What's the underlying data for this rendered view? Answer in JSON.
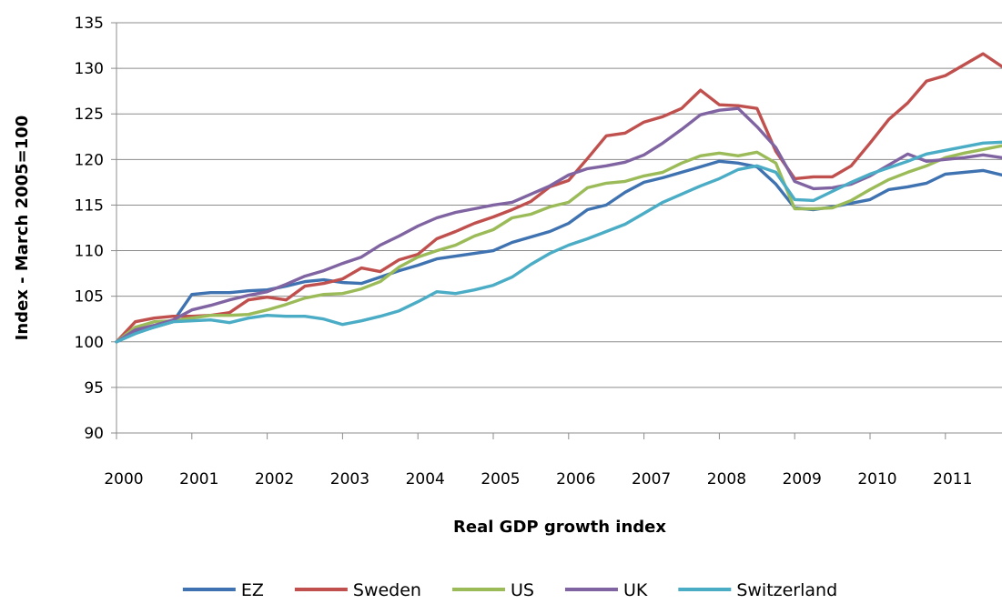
{
  "chart_data": {
    "type": "line",
    "title": "",
    "xlabel": "Real GDP growth index",
    "ylabel": "Index - March 2005=100",
    "ylim": [
      90,
      135
    ],
    "xlim": [
      2000,
      2011.75
    ],
    "y_ticks": [
      90,
      95,
      100,
      105,
      110,
      115,
      120,
      125,
      130,
      135
    ],
    "x_ticks": [
      2000,
      2001,
      2002,
      2003,
      2004,
      2005,
      2006,
      2007,
      2008,
      2009,
      2010,
      2011
    ],
    "grid": "horizontal",
    "legend_position": "bottom",
    "x": [
      2000.0,
      2000.25,
      2000.5,
      2000.75,
      2001.0,
      2001.25,
      2001.5,
      2001.75,
      2002.0,
      2002.25,
      2002.5,
      2002.75,
      2003.0,
      2003.25,
      2003.5,
      2003.75,
      2004.0,
      2004.25,
      2004.5,
      2004.75,
      2005.0,
      2005.25,
      2005.5,
      2005.75,
      2006.0,
      2006.25,
      2006.5,
      2006.75,
      2007.0,
      2007.25,
      2007.5,
      2007.75,
      2008.0,
      2008.25,
      2008.5,
      2008.75,
      2009.0,
      2009.25,
      2009.5,
      2009.75,
      2010.0,
      2010.25,
      2010.5,
      2010.75,
      2011.0,
      2011.25,
      2011.5,
      2011.75
    ],
    "series": [
      {
        "name": "EZ",
        "color": "#3f72b0",
        "values": [
          100.0,
          101.0,
          101.6,
          102.2,
          105.2,
          105.4,
          105.4,
          105.6,
          105.7,
          106.1,
          106.6,
          106.8,
          106.5,
          106.4,
          107.1,
          107.8,
          108.4,
          109.1,
          109.4,
          109.7,
          110.0,
          110.9,
          111.5,
          112.1,
          113.0,
          114.5,
          115.0,
          116.4,
          117.5,
          118.0,
          118.6,
          119.2,
          119.8,
          119.6,
          119.2,
          117.3,
          114.7,
          114.5,
          114.8,
          115.2,
          115.6,
          116.7,
          117.0,
          117.4,
          118.4,
          118.6,
          118.8,
          118.3
        ]
      },
      {
        "name": "Sweden",
        "color": "#c0504d",
        "values": [
          100.0,
          102.2,
          102.6,
          102.8,
          102.8,
          102.9,
          103.2,
          104.6,
          104.9,
          104.6,
          106.1,
          106.4,
          106.9,
          108.1,
          107.7,
          109.0,
          109.6,
          111.3,
          112.1,
          113.0,
          113.7,
          114.5,
          115.4,
          117.0,
          117.7,
          120.1,
          122.6,
          122.9,
          124.1,
          124.7,
          125.6,
          127.6,
          126.0,
          125.9,
          125.6,
          120.9,
          117.9,
          118.1,
          118.1,
          119.3,
          121.8,
          124.4,
          126.2,
          128.6,
          129.2,
          130.4,
          131.6,
          130.2
        ]
      },
      {
        "name": "US",
        "color": "#9bbb59",
        "values": [
          100.0,
          101.6,
          102.2,
          102.3,
          102.6,
          102.9,
          102.9,
          103.0,
          103.5,
          104.1,
          104.8,
          105.2,
          105.3,
          105.8,
          106.6,
          108.2,
          109.3,
          110.0,
          110.6,
          111.6,
          112.3,
          113.6,
          114.0,
          114.8,
          115.3,
          116.9,
          117.4,
          117.6,
          118.2,
          118.6,
          119.6,
          120.4,
          120.7,
          120.4,
          120.8,
          119.6,
          114.6,
          114.6,
          114.7,
          115.5,
          116.7,
          117.8,
          118.6,
          119.3,
          120.2,
          120.7,
          121.1,
          121.5
        ]
      },
      {
        "name": "UK",
        "color": "#8064a2",
        "values": [
          100.0,
          101.3,
          101.8,
          102.4,
          103.5,
          104.0,
          104.6,
          105.1,
          105.5,
          106.3,
          107.2,
          107.8,
          108.6,
          109.3,
          110.6,
          111.6,
          112.7,
          113.6,
          114.2,
          114.6,
          115.0,
          115.3,
          116.2,
          117.1,
          118.3,
          119.0,
          119.3,
          119.7,
          120.5,
          121.8,
          123.3,
          124.9,
          125.4,
          125.6,
          123.6,
          121.3,
          117.6,
          116.8,
          116.9,
          117.3,
          118.2,
          119.4,
          120.6,
          119.8,
          120.0,
          120.2,
          120.5,
          120.2
        ]
      },
      {
        "name": "Switzerland",
        "color": "#4bacc6",
        "values": [
          100.0,
          100.9,
          101.6,
          102.2,
          102.3,
          102.4,
          102.1,
          102.6,
          102.9,
          102.8,
          102.8,
          102.5,
          101.9,
          102.3,
          102.8,
          103.4,
          104.4,
          105.5,
          105.3,
          105.7,
          106.2,
          107.1,
          108.5,
          109.7,
          110.6,
          111.3,
          112.1,
          112.9,
          114.1,
          115.3,
          116.2,
          117.1,
          117.9,
          118.9,
          119.3,
          118.6,
          115.6,
          115.5,
          116.5,
          117.5,
          118.4,
          119.1,
          119.8,
          120.6,
          121.0,
          121.4,
          121.8,
          121.9
        ]
      }
    ]
  }
}
